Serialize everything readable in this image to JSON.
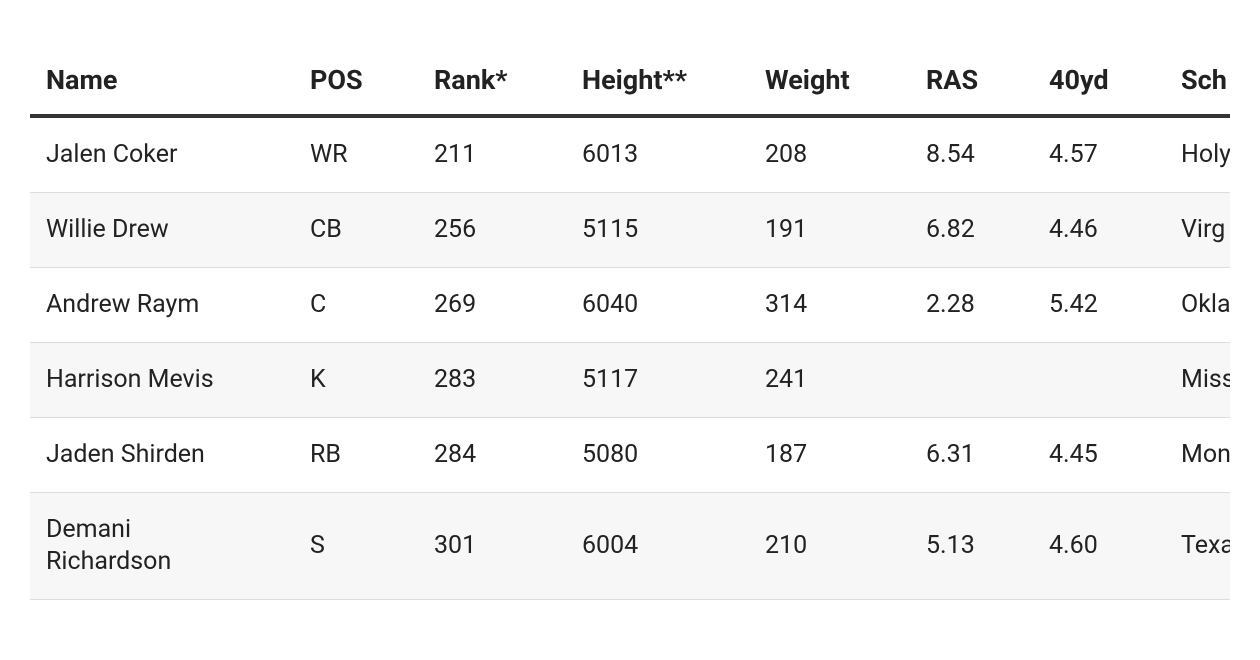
{
  "table": {
    "columns": [
      "Name",
      "POS",
      "Rank*",
      "Height**",
      "Weight",
      "RAS",
      "40yd",
      "Sch"
    ],
    "rows": [
      [
        "Jalen Coker",
        "WR",
        "211",
        "6013",
        "208",
        "8.54",
        "4.57",
        "Holy"
      ],
      [
        "Willie Drew",
        "CB",
        "256",
        "5115",
        "191",
        "6.82",
        "4.46",
        "Virg Stat"
      ],
      [
        "Andrew Raym",
        "C",
        "269",
        "6040",
        "314",
        "2.28",
        "5.42",
        "Okla"
      ],
      [
        "Harrison Mevis",
        "K",
        "283",
        "5117",
        "241",
        null,
        null,
        "Miss"
      ],
      [
        "Jaden Shirden",
        "RB",
        "284",
        "5080",
        "187",
        "6.31",
        "4.45",
        "Mon"
      ],
      [
        "Demani Richardson",
        "S",
        "301",
        "6004",
        "210",
        "5.13",
        "4.60",
        "Texa"
      ]
    ]
  }
}
